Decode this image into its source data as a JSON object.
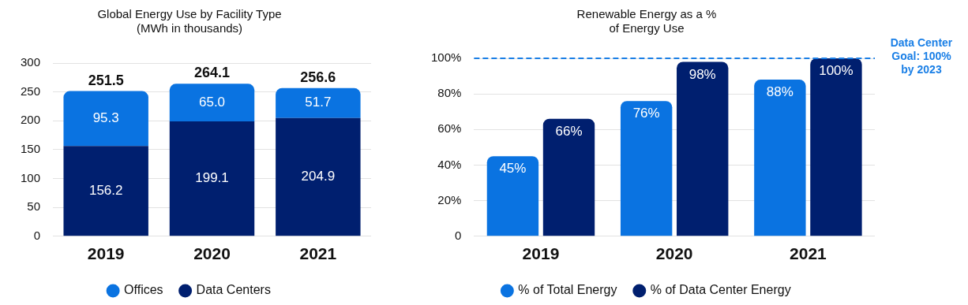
{
  "chart_data": [
    {
      "type": "bar",
      "title": "Global Energy Use by Facility Type\n(MWh in thousands)",
      "categories": [
        "2019",
        "2020",
        "2021"
      ],
      "stacked": true,
      "series": [
        {
          "name": "Data Centers",
          "color": "#001f6f",
          "values": [
            156.2,
            199.1,
            204.9
          ],
          "value_labels": [
            "156.2",
            "199.1",
            "204.9"
          ]
        },
        {
          "name": "Offices",
          "color": "#0a73e1",
          "values": [
            95.3,
            65.0,
            51.7
          ],
          "value_labels": [
            "95.3",
            "65.0",
            "51.7"
          ]
        }
      ],
      "totals": [
        "251.5",
        "264.1",
        "256.6"
      ],
      "ylim": [
        0,
        300
      ],
      "yticks": [
        0,
        50,
        100,
        150,
        200,
        250,
        300
      ],
      "grid": "y",
      "legend": "bottom"
    },
    {
      "type": "bar",
      "title": "Renewable Energy as a %\nof Energy Use",
      "categories": [
        "2019",
        "2020",
        "2021"
      ],
      "series": [
        {
          "name": "% of Total Energy",
          "color": "#0a73e1",
          "values": [
            45,
            76,
            88
          ],
          "value_labels": [
            "45%",
            "76%",
            "88%"
          ]
        },
        {
          "name": "% of Data Center Energy",
          "color": "#001f6f",
          "values": [
            66,
            98,
            100
          ],
          "value_labels": [
            "66%",
            "98%",
            "100%"
          ]
        }
      ],
      "ylim": [
        0,
        100
      ],
      "yticks": [
        0,
        {
          "value": 20,
          "label": "20%"
        },
        {
          "value": 40,
          "label": "40%"
        },
        {
          "value": 60,
          "label": "60%"
        },
        {
          "value": 80,
          "label": "80%"
        },
        {
          "value": 100,
          "label": "100%"
        }
      ],
      "grid": "y",
      "legend": "bottom",
      "ref_lines": [
        {
          "axis": "y",
          "value": 100,
          "label": "Data Center Goal: 100% by 2023",
          "color": "#1a7fe6",
          "line_style": "dashed"
        }
      ]
    }
  ]
}
